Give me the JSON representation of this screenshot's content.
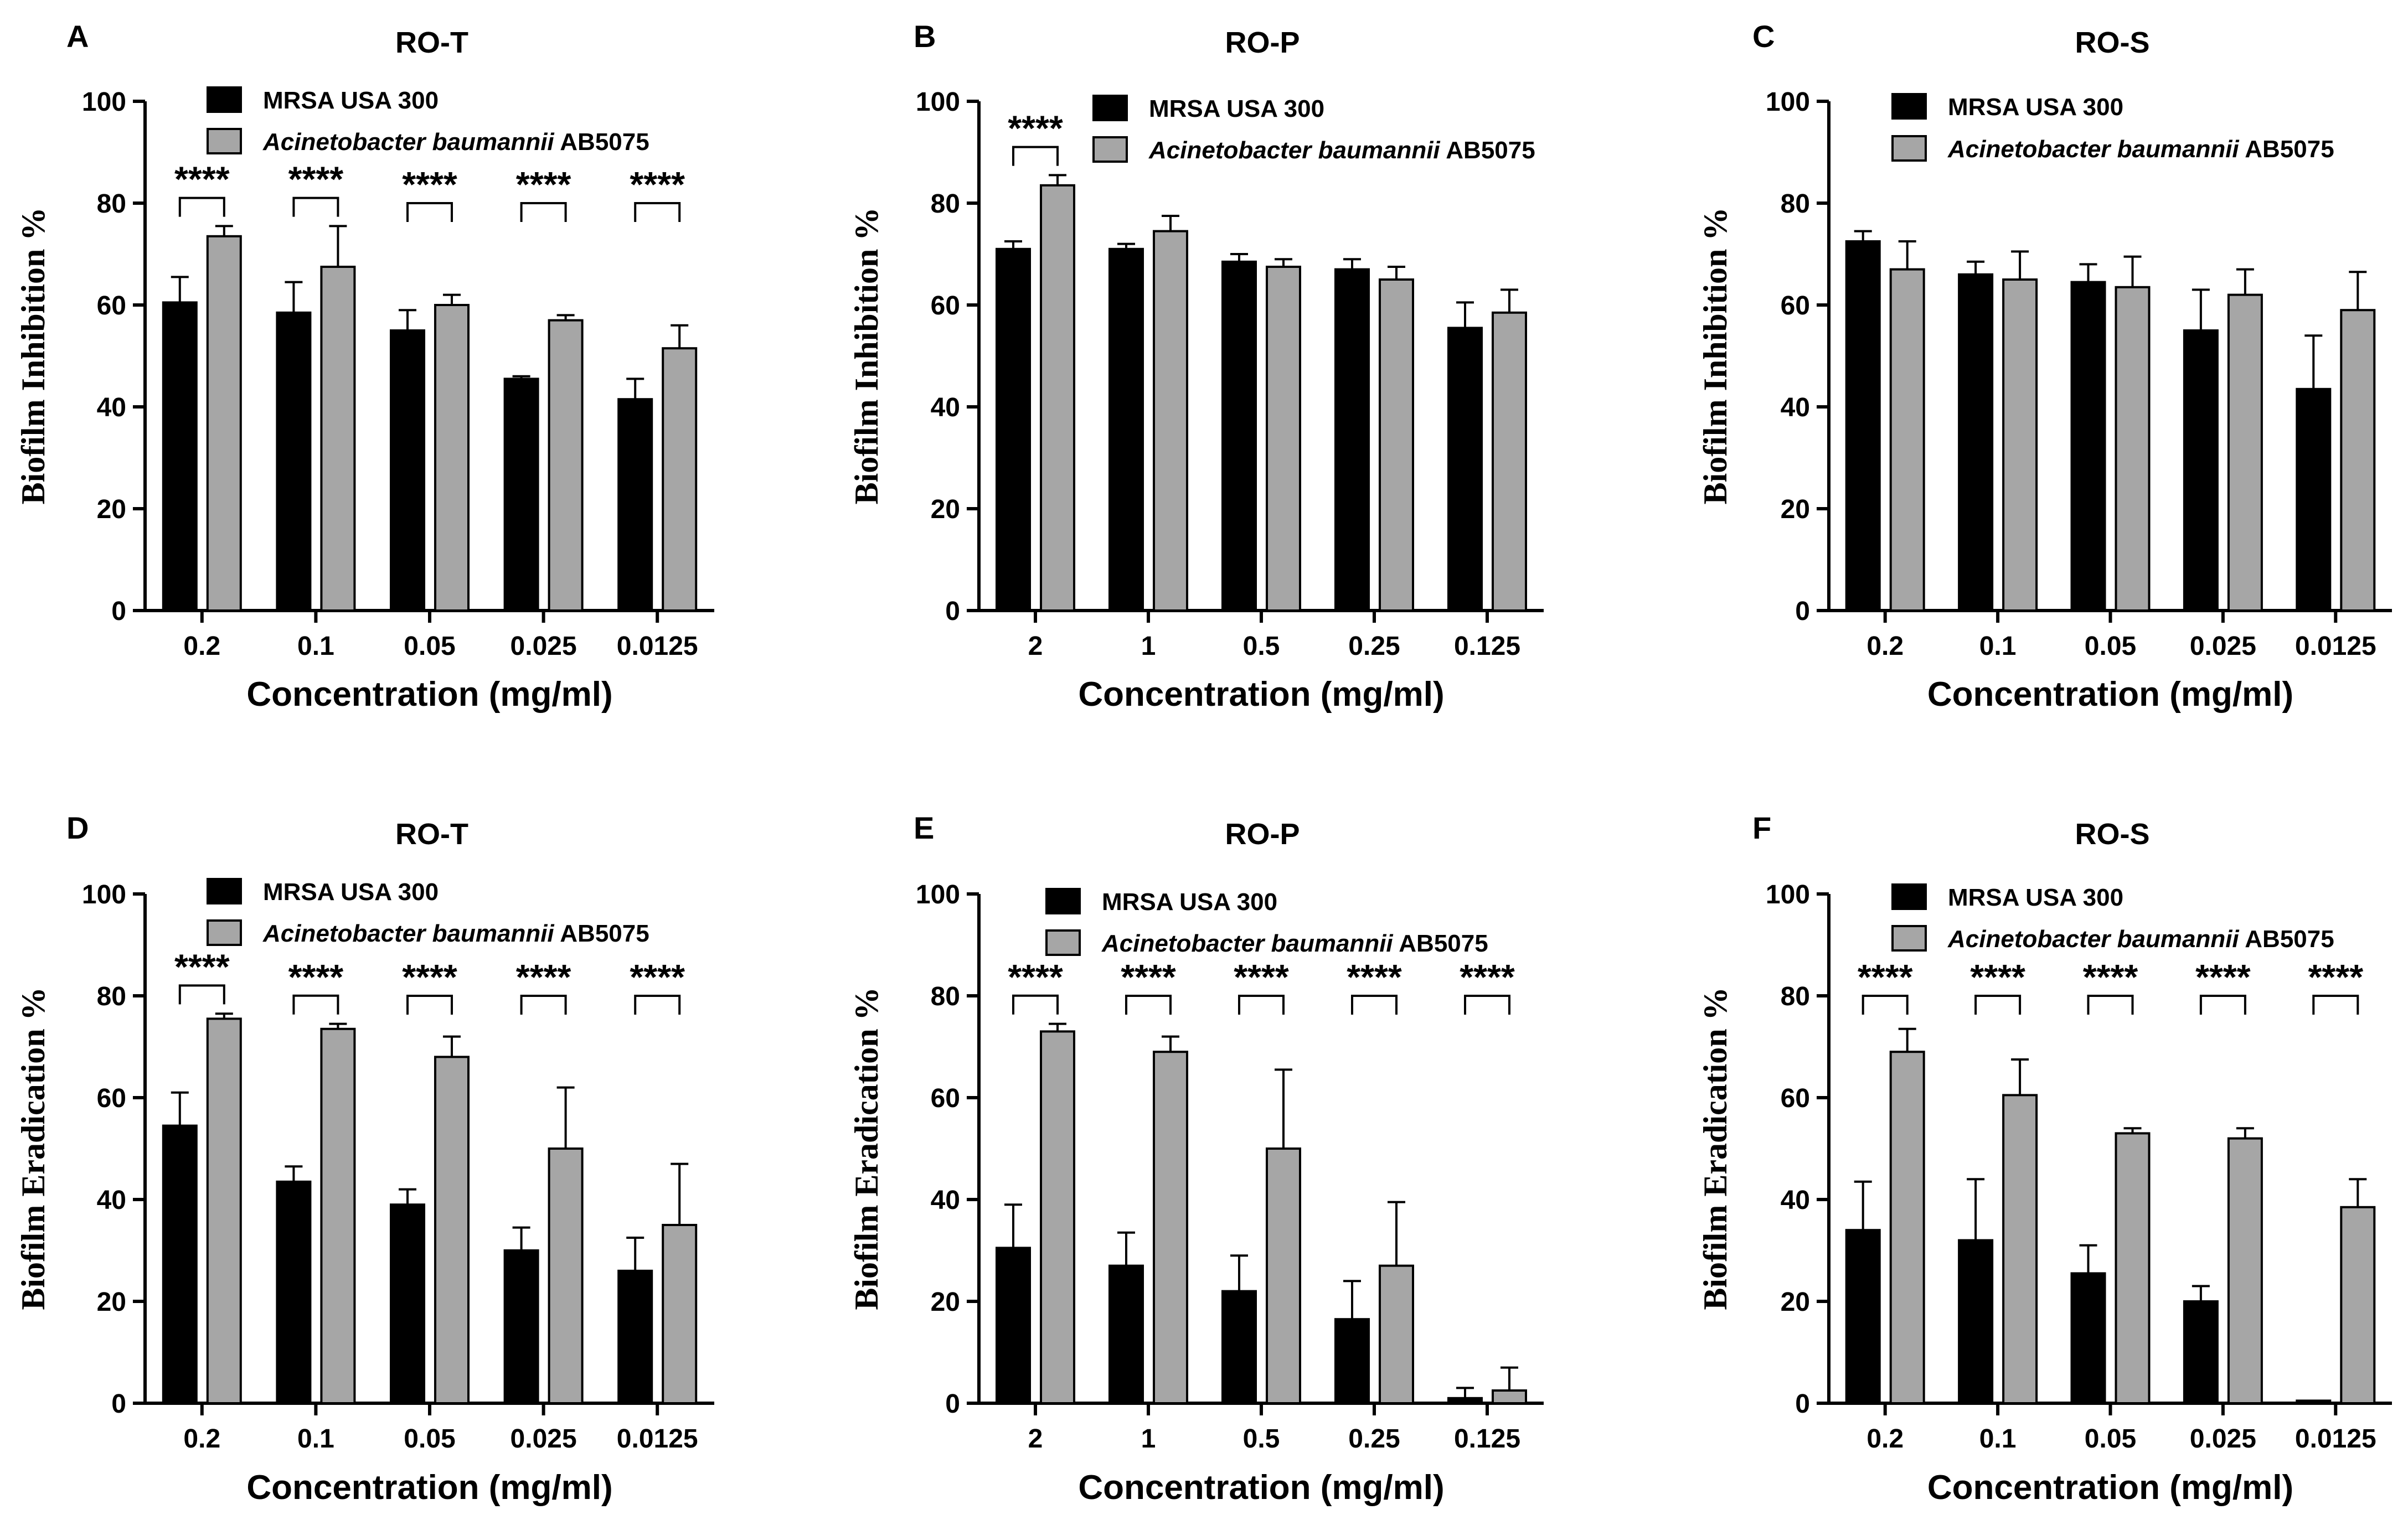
{
  "colors": {
    "series_a": "#000000",
    "series_b": "#a6a6a6",
    "axis": "#000000"
  },
  "chart_data": [
    {
      "panel": "A",
      "title": "RO-T",
      "type": "bar",
      "xlabel": "Concentration (mg/ml)",
      "ylabel": "Biofilm Inhibition %",
      "ylim": [
        0,
        100
      ],
      "yticks": [
        0,
        20,
        40,
        60,
        80,
        100
      ],
      "categories": [
        "0.2",
        "0.1",
        "0.05",
        "0.025",
        "0.0125"
      ],
      "legend_placement": "top",
      "series": [
        {
          "name": "MRSA USA 300",
          "values": [
            60.5,
            58.5,
            55,
            45.5,
            41.5
          ],
          "errors": [
            5,
            6,
            4,
            0.5,
            4
          ]
        },
        {
          "name": "Acinetobacter baumannii AB5075",
          "name_italic": "Acinetobacter baumannii",
          "name_rest": " AB5075",
          "values": [
            73.5,
            67.5,
            60,
            57,
            51.5
          ],
          "errors": [
            2,
            8,
            2,
            1,
            4.5
          ]
        }
      ],
      "significance": [
        "****",
        "****",
        "****",
        "****",
        "****"
      ]
    },
    {
      "panel": "B",
      "title": "RO-P",
      "type": "bar",
      "xlabel": "Concentration (mg/ml)",
      "ylabel": "Biofilm Inhibition %",
      "ylim": [
        0,
        100
      ],
      "yticks": [
        0,
        20,
        40,
        60,
        80,
        100
      ],
      "categories": [
        "2",
        "1",
        "0.5",
        "0.25",
        "0.125"
      ],
      "legend_placement": "top",
      "series": [
        {
          "name": "MRSA USA 300",
          "values": [
            71,
            71,
            68.5,
            67,
            55.5
          ],
          "errors": [
            1.5,
            1,
            1.5,
            2,
            5
          ]
        },
        {
          "name": "Acinetobacter baumannii AB5075",
          "name_italic": "Acinetobacter baumannii",
          "name_rest": " AB5075",
          "values": [
            83.5,
            74.5,
            67.5,
            65,
            58.5
          ],
          "errors": [
            2,
            3,
            1.5,
            2.5,
            4.5
          ]
        }
      ],
      "significance": [
        "****",
        "",
        "",
        "",
        ""
      ]
    },
    {
      "panel": "C",
      "title": "RO-S",
      "type": "bar",
      "xlabel": "Concentration (mg/ml)",
      "ylabel": "Biofilm Inhibition %",
      "ylim": [
        0,
        100
      ],
      "yticks": [
        0,
        20,
        40,
        60,
        80,
        100
      ],
      "categories": [
        "0.2",
        "0.1",
        "0.05",
        "0.025",
        "0.0125"
      ],
      "legend_placement": "top",
      "series": [
        {
          "name": "MRSA USA 300",
          "values": [
            72.5,
            66,
            64.5,
            55,
            43.5
          ],
          "errors": [
            2,
            2.5,
            3.5,
            8,
            10.5
          ]
        },
        {
          "name": "Acinetobacter baumannii AB5075",
          "name_italic": "Acinetobacter baumannii",
          "name_rest": " AB5075",
          "values": [
            67,
            65,
            63.5,
            62,
            59
          ],
          "errors": [
            5.5,
            5.5,
            6,
            5,
            7.5
          ]
        }
      ],
      "significance": [
        "",
        "",
        "",
        "",
        ""
      ]
    },
    {
      "panel": "D",
      "title": "RO-T",
      "type": "bar",
      "xlabel": "Concentration (mg/ml)",
      "ylabel": "Biofilm Eradication %",
      "ylim": [
        0,
        100
      ],
      "yticks": [
        0,
        20,
        40,
        60,
        80,
        100
      ],
      "categories": [
        "0.2",
        "0.1",
        "0.05",
        "0.025",
        "0.0125"
      ],
      "legend_placement": "top",
      "series": [
        {
          "name": "MRSA USA 300",
          "values": [
            54.5,
            43.5,
            39,
            30,
            26
          ],
          "errors": [
            6.5,
            3,
            3,
            4.5,
            6.5
          ]
        },
        {
          "name": "Acinetobacter baumannii AB5075",
          "name_italic": "Acinetobacter baumannii",
          "name_rest": " AB5075",
          "values": [
            75.5,
            73.5,
            68,
            50,
            35
          ],
          "errors": [
            1,
            1,
            4,
            12,
            12
          ]
        }
      ],
      "significance": [
        "****",
        "****",
        "****",
        "****",
        "****"
      ]
    },
    {
      "panel": "E",
      "title": "RO-P",
      "type": "bar",
      "xlabel": "Concentration (mg/ml)",
      "ylabel": "Biofilm Eradication %",
      "ylim": [
        0,
        100
      ],
      "yticks": [
        0,
        20,
        40,
        60,
        80,
        100
      ],
      "categories": [
        "2",
        "1",
        "0.5",
        "0.25",
        "0.125"
      ],
      "legend_placement": "top",
      "series": [
        {
          "name": "MRSA USA 300",
          "values": [
            30.5,
            27,
            22,
            16.5,
            1
          ],
          "errors": [
            8.5,
            6.5,
            7,
            7.5,
            2
          ]
        },
        {
          "name": "Acinetobacter baumannii AB5075",
          "name_italic": "Acinetobacter baumannii",
          "name_rest": " AB5075",
          "values": [
            73,
            69,
            50,
            27,
            2.5
          ],
          "errors": [
            1.5,
            3,
            15.5,
            12.5,
            4.5
          ]
        }
      ],
      "significance": [
        "****",
        "****",
        "****",
        "****",
        "****"
      ]
    },
    {
      "panel": "F",
      "title": "RO-S",
      "type": "bar",
      "xlabel": "Concentration (mg/ml)",
      "ylabel": "Biofilm Eradication %",
      "ylim": [
        0,
        100
      ],
      "yticks": [
        0,
        20,
        40,
        60,
        80,
        100
      ],
      "categories": [
        "0.2",
        "0.1",
        "0.05",
        "0.025",
        "0.0125"
      ],
      "legend_placement": "top",
      "series": [
        {
          "name": "MRSA USA 300",
          "values": [
            34,
            32,
            25.5,
            20,
            0.5
          ],
          "errors": [
            9.5,
            12,
            5.5,
            3,
            0
          ]
        },
        {
          "name": "Acinetobacter baumannii AB5075",
          "name_italic": "Acinetobacter baumannii",
          "name_rest": " AB5075",
          "values": [
            69,
            60.5,
            53,
            52,
            38.5
          ],
          "errors": [
            4.5,
            7,
            1,
            2,
            5.5
          ]
        }
      ],
      "significance": [
        "****",
        "****",
        "****",
        "****",
        "****"
      ]
    }
  ]
}
